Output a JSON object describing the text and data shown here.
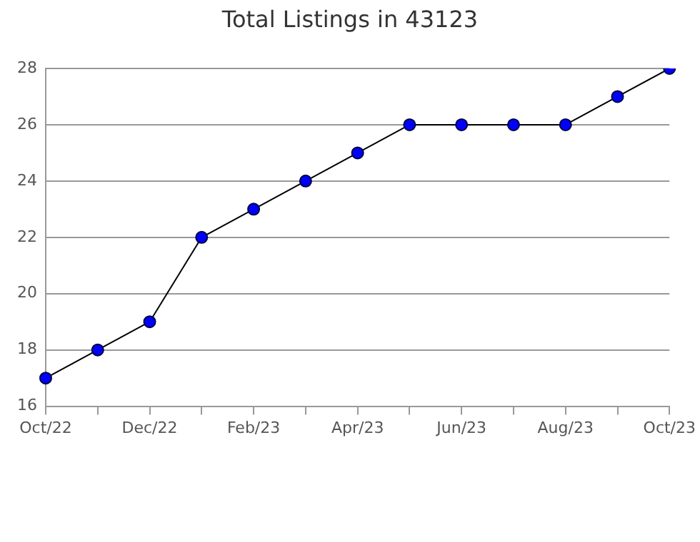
{
  "chart_data": {
    "type": "line",
    "title": "Total Listings in 43123",
    "categories": [
      "Oct/22",
      null,
      "Dec/22",
      null,
      "Feb/23",
      null,
      "Apr/23",
      null,
      "Jun/23",
      null,
      "Aug/23",
      null,
      "Oct/23"
    ],
    "series": [
      {
        "color": "#0000ff",
        "values": [
          17,
          18,
          19,
          22,
          23,
          24,
          25,
          26,
          26,
          26,
          26,
          27,
          28
        ]
      }
    ],
    "ylim": [
      16,
      28
    ],
    "yticks": [
      16,
      18,
      20,
      22,
      24,
      26,
      28
    ],
    "grid": "y",
    "legend": false,
    "marker": "circle",
    "line_style": "solid"
  }
}
